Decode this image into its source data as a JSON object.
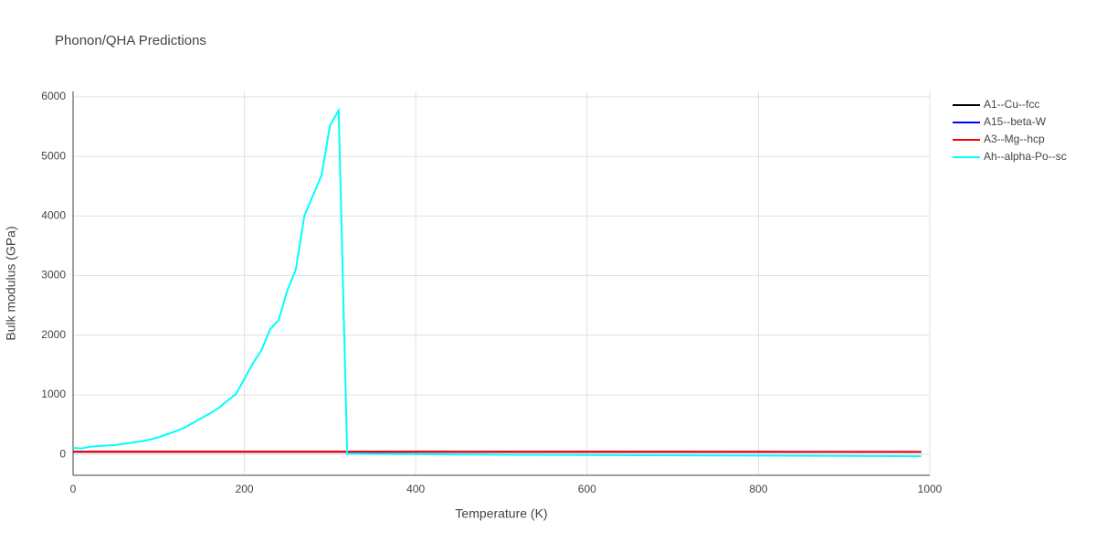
{
  "chart_data": {
    "type": "line",
    "title": "Phonon/QHA Predictions",
    "x_label": "Temperature (K)",
    "y_label": "Bulk modulus (GPa)",
    "xlim": [
      0,
      1000
    ],
    "ylim": [
      -350,
      6090
    ],
    "xticks": [
      0,
      200,
      400,
      600,
      800,
      1000
    ],
    "yticks": [
      0,
      1000,
      2000,
      3000,
      4000,
      5000,
      6000
    ],
    "grid": true,
    "legend": "right",
    "series": [
      {
        "name": "A1--Cu--fcc",
        "color": "#000000",
        "x": [
          0,
          200,
          400,
          600,
          800,
          990
        ],
        "values": [
          45,
          45,
          44,
          43,
          42,
          41
        ]
      },
      {
        "name": "A15--beta-W",
        "color": "#0000ff",
        "x": [
          0,
          200,
          400,
          600,
          800,
          990
        ],
        "values": [
          46,
          46,
          45,
          44,
          43,
          42
        ]
      },
      {
        "name": "A3--Mg--hcp",
        "color": "#ff0000",
        "x": [
          0,
          200,
          400,
          600,
          800,
          990
        ],
        "values": [
          47,
          47,
          46,
          45,
          44,
          43
        ]
      },
      {
        "name": "Ah--alpha-Po--sc",
        "color": "#00ffff",
        "x": [
          0,
          10,
          20,
          30,
          50,
          70,
          80,
          90,
          100,
          110,
          120,
          130,
          140,
          150,
          160,
          170,
          180,
          190,
          200,
          210,
          220,
          230,
          240,
          250,
          260,
          270,
          290,
          300,
          310,
          320,
          500,
          700,
          900,
          990
        ],
        "values": [
          110,
          100,
          130,
          140,
          160,
          200,
          220,
          250,
          290,
          340,
          390,
          450,
          530,
          610,
          690,
          780,
          900,
          1010,
          1270,
          1530,
          1750,
          2100,
          2255,
          2747,
          3100,
          4005,
          4680,
          5524,
          5770,
          15,
          -5,
          -15,
          -25,
          -30
        ]
      }
    ]
  }
}
